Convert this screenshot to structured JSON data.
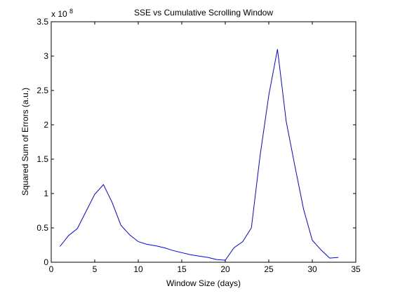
{
  "chart_data": {
    "type": "line",
    "title": "SSE vs Cumulative Scrolling Window",
    "xlabel": "Window Size (days)",
    "ylabel": "Squared Sum of Errors (a.u.)",
    "y_exponent_label": {
      "base": "x 10",
      "exponent": "8"
    },
    "xlim": [
      0,
      35
    ],
    "ylim": [
      0,
      3.5
    ],
    "xticks": [
      0,
      5,
      10,
      15,
      20,
      25,
      30,
      35
    ],
    "xtick_labels": [
      "0",
      "5",
      "10",
      "15",
      "20",
      "25",
      "30",
      "35"
    ],
    "yticks": [
      0,
      0.5,
      1,
      1.5,
      2,
      2.5,
      3,
      3.5
    ],
    "ytick_labels": [
      "0",
      "0.5",
      "1",
      "1.5",
      "2",
      "2.5",
      "3",
      "3.5"
    ],
    "grid": false,
    "line_color": "#0000ff",
    "series": [
      {
        "x": [
          1,
          2,
          3,
          4,
          5,
          6,
          7,
          8,
          9,
          10,
          11,
          12,
          13,
          14,
          15,
          16,
          17,
          18,
          19,
          20,
          21,
          22,
          23,
          24,
          25,
          26,
          27,
          28,
          29,
          30,
          31,
          32,
          33
        ],
        "values": [
          0.23,
          0.39,
          0.49,
          0.74,
          0.99,
          1.13,
          0.87,
          0.54,
          0.4,
          0.3,
          0.26,
          0.24,
          0.21,
          0.17,
          0.14,
          0.11,
          0.09,
          0.07,
          0.04,
          0.03,
          0.21,
          0.3,
          0.5,
          1.55,
          2.43,
          3.1,
          2.05,
          1.4,
          0.77,
          0.32,
          0.18,
          0.06,
          0.07
        ]
      }
    ]
  }
}
